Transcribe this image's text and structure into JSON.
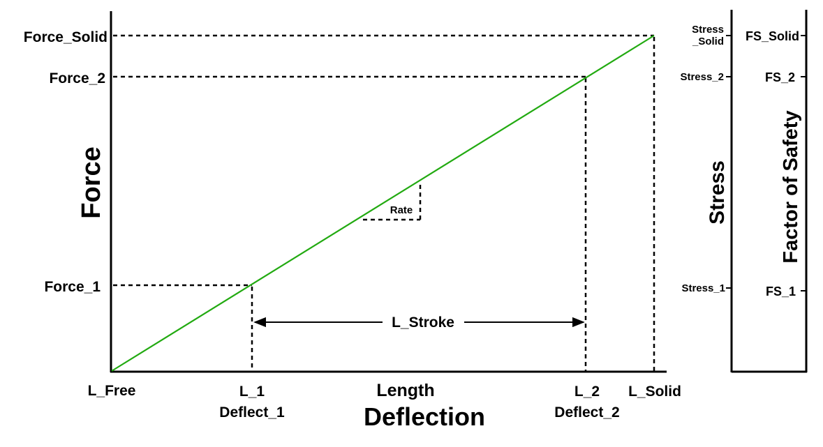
{
  "colors": {
    "line": "#22aa11",
    "ink": "#000000",
    "background": "#ffffff"
  },
  "force_axis": {
    "title": "Force",
    "ticks": {
      "solid": "Force_Solid",
      "f2": "Force_2",
      "f1": "Force_1"
    }
  },
  "length_axis": {
    "title_top": "Length",
    "title_bottom": "Deflection",
    "ticks": {
      "free": "L_Free",
      "l1": "L_1",
      "d1": "Deflect_1",
      "l2": "L_2",
      "d2": "Deflect_2",
      "solid": "L_Solid"
    }
  },
  "stress_axis": {
    "title": "Stress",
    "ticks": {
      "solid_line1": "Stress",
      "solid_line2": "_Solid",
      "s2": "Stress_2",
      "s1": "Stress_1"
    }
  },
  "fs_axis": {
    "title": "Factor of Safety",
    "ticks": {
      "solid": "FS_Solid",
      "f2": "FS_2",
      "f1": "FS_1"
    }
  },
  "annotations": {
    "rate": "Rate",
    "stroke": "L_Stroke"
  }
}
